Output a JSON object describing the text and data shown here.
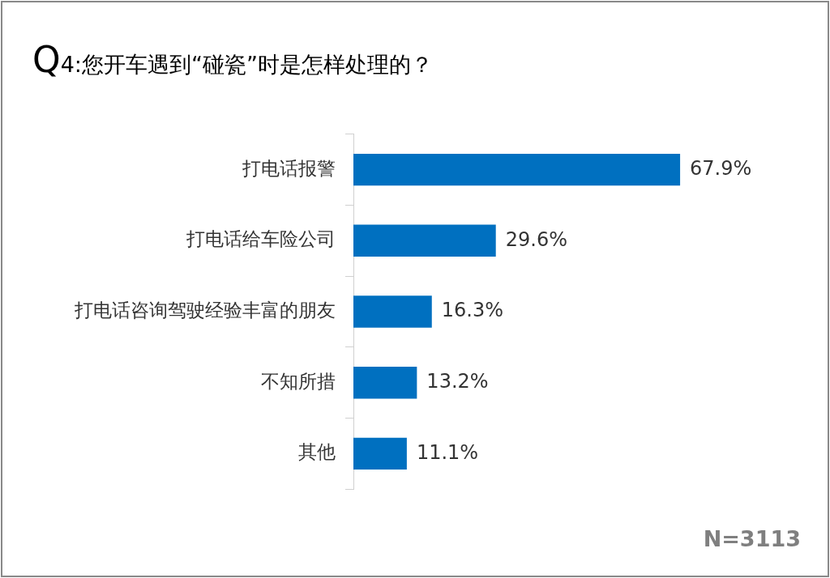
{
  "chart_data": {
    "type": "bar",
    "orientation": "horizontal",
    "title": "Q4:您开车遇到“碰瓷”时是怎样处理的？",
    "categories": [
      "打电话报警",
      "打电话给车险公司",
      "打电话咨询驾驶经验丰富的朋友",
      "不知所措",
      "其他"
    ],
    "values": [
      67.9,
      29.6,
      16.3,
      13.2,
      11.1
    ],
    "color": "#0070c0",
    "value_labels": [
      "67.9%",
      "29.6%",
      "16.3%",
      "13.2%",
      "11.1%"
    ],
    "annotations": [
      "N=3113"
    ],
    "legend": false
  }
}
